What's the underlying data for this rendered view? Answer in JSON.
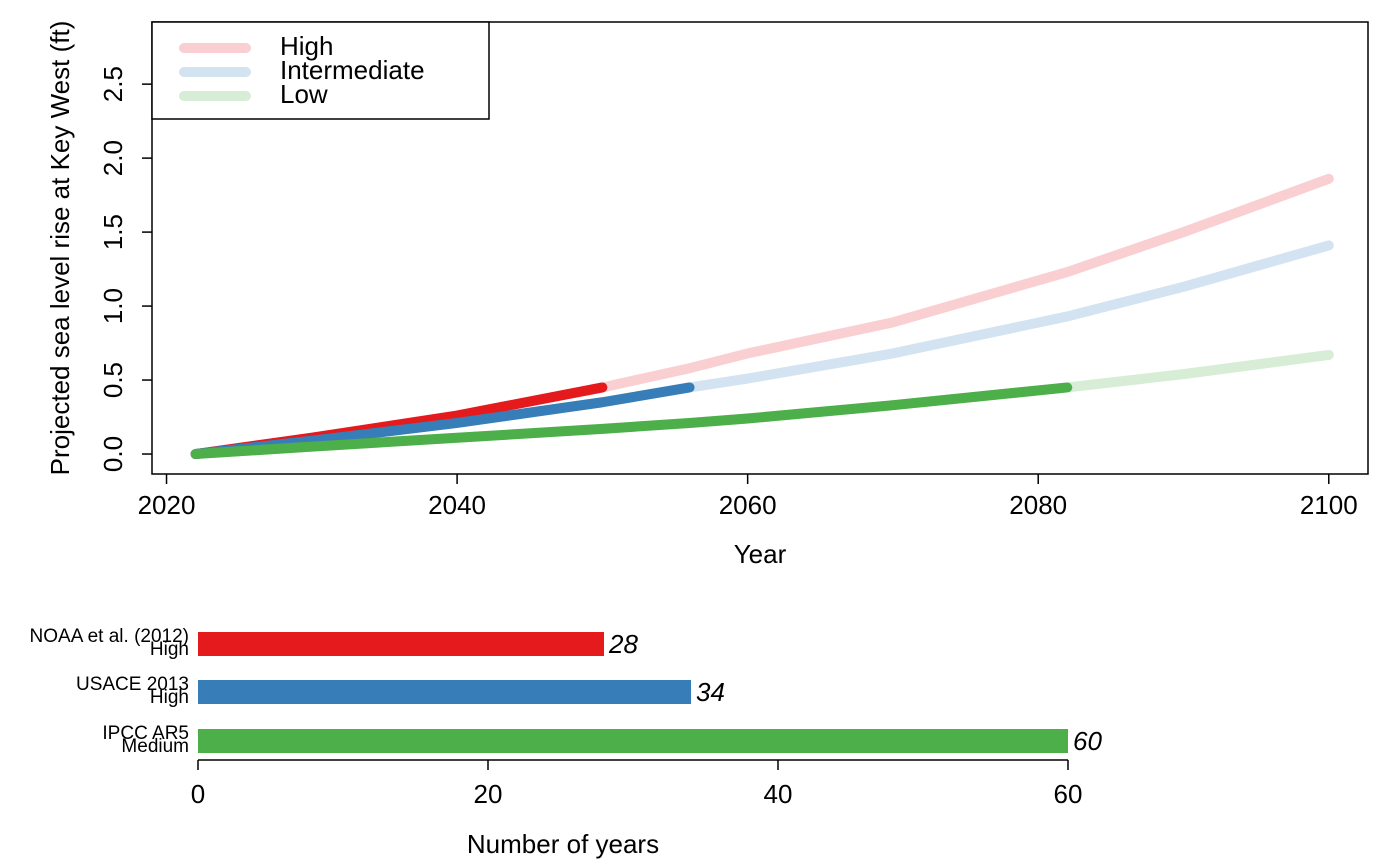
{
  "chart_data": [
    {
      "type": "line",
      "xlabel": "Year",
      "ylabel": "Projected sea level rise at Key West (ft)",
      "x": [
        2022,
        2030,
        2040,
        2050,
        2056,
        2060,
        2070,
        2082,
        2090,
        2100
      ],
      "series": [
        {
          "name": "High",
          "color": "#f9cfd1",
          "values": [
            0,
            0.11,
            0.26,
            0.45,
            0.58,
            0.68,
            0.89,
            1.23,
            1.5,
            1.86
          ]
        },
        {
          "name": "Intermediate",
          "color": "#d3e3f1",
          "values": [
            0,
            0.09,
            0.21,
            0.35,
            0.45,
            0.51,
            0.68,
            0.93,
            1.13,
            1.41
          ]
        },
        {
          "name": "Low",
          "color": "#d7edd6",
          "values": [
            0,
            0.05,
            0.11,
            0.17,
            0.21,
            0.24,
            0.33,
            0.45,
            0.54,
            0.67
          ]
        },
        {
          "color": "#e41a1c",
          "values": [
            0,
            0.11,
            0.26,
            0.45,
            null,
            null,
            null,
            null,
            null,
            null
          ]
        },
        {
          "color": "#377eb8",
          "values": [
            0,
            0.09,
            0.21,
            0.35,
            0.45,
            null,
            null,
            null,
            null,
            null
          ]
        },
        {
          "color": "#4daf4a",
          "values": [
            0,
            0.05,
            0.11,
            0.17,
            0.21,
            0.24,
            0.33,
            0.45,
            null,
            null
          ]
        }
      ],
      "xlim": [
        2019,
        2102.7
      ],
      "xticks": [
        2020,
        2040,
        2060,
        2080,
        2100
      ],
      "ylim": [
        -0.135,
        2.92
      ],
      "yticks": [
        {
          "value": 0,
          "label": "0.0"
        },
        0.5,
        {
          "value": 1,
          "label": "1.0"
        },
        1.5,
        {
          "value": 2,
          "label": "2.0"
        },
        2.5
      ],
      "legend": "top-left"
    },
    {
      "type": "bar",
      "orientation": "horizontal",
      "xlabel": "Number of years",
      "categories": [
        [
          "NOAA et al. (2012)",
          "High"
        ],
        [
          "USACE 2013",
          "High"
        ],
        [
          "IPCC AR5",
          "Medium"
        ]
      ],
      "values": [
        28,
        34,
        60
      ],
      "colors": [
        "#e41a1c",
        "#377eb8",
        "#4daf4a"
      ],
      "xlim": [
        0,
        60
      ],
      "xticks": [
        0,
        20,
        40,
        60
      ]
    }
  ]
}
